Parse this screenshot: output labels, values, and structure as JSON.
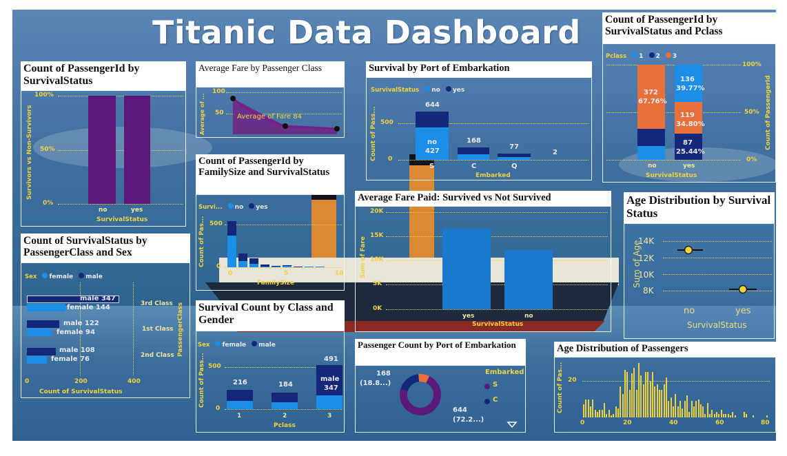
{
  "dashboard_title": "Titanic Data Dashboard",
  "colors": {
    "purple": "#5b1a7a",
    "dark_blue": "#14287a",
    "bright_blue": "#1b8fe8",
    "orange": "#e8703a",
    "axis_yellow": "#f0d23c"
  },
  "icons": {
    "more": "chevron-down-icon"
  },
  "p1": {
    "title": "Count of PassengerId by SurvivalStatus",
    "y_axis_label": "Survivors vs Non-Survivors",
    "x_axis_label": "SurvivalStatus",
    "yticks": [
      "100%",
      "50%",
      "0%"
    ],
    "cats": [
      "no",
      "yes"
    ]
  },
  "p2": {
    "title": "Average Fare by Passenger Class",
    "y_axis_label": "Average of ...",
    "yticks": [
      "100",
      "50"
    ],
    "annotation": "Average of Fare 84"
  },
  "p3": {
    "title": "Survival by Port of Embarkation",
    "legend_title": "SurvivalStatus",
    "legend": [
      "no",
      "yes"
    ],
    "y_axis_label": "Count of Pass...",
    "x_axis_label": "Embarked",
    "yticks": [
      "500",
      "0"
    ],
    "no_label": "no",
    "vals": [
      "644",
      "427",
      "168",
      "77",
      "2"
    ],
    "cats": [
      "S",
      "C",
      "Q"
    ]
  },
  "p4": {
    "title": "Count of PassengerId by SurvivalStatus and Pclass",
    "legend_title": "Pclass",
    "legend": [
      "1",
      "2",
      "3"
    ],
    "right_axis_label": "Count of PassengerId",
    "x_axis_label": "SurvivalStatus",
    "yticks": [
      "100%",
      "50%",
      "0%"
    ],
    "no_vals": [
      "372",
      "67.76%"
    ],
    "yes_vals": [
      "136",
      "39.77%",
      "119",
      "34.80%",
      "87",
      "25.44%"
    ],
    "cats": [
      "no",
      "yes"
    ]
  },
  "p5": {
    "title": "Count of PassengerId by FamilySize and SurvivalStatus",
    "legend_title": "Survi...",
    "legend": [
      "no",
      "yes"
    ],
    "y_axis_label": "Count of Pas...",
    "x_axis_label": "FamilySize",
    "yticks": [
      "500",
      "0"
    ],
    "xticks": [
      "0",
      "5",
      "10"
    ]
  },
  "p6": {
    "title": "Average Fare Paid: Survived vs Not Survived",
    "y_axis_label": "Sum of Fare",
    "x_axis_label": "SurvivalStatus",
    "yticks": [
      "20K",
      "15K",
      "10K",
      "5K",
      "0K"
    ],
    "cats": [
      "yes",
      "no"
    ]
  },
  "p7": {
    "title": "Age Distribution by Survival Status",
    "y_axis_label": "Sum of Age",
    "x_axis_label": "SurvivalStatus",
    "yticks": [
      "14K",
      "12K",
      "10K",
      "8K"
    ],
    "cats": [
      "no",
      "yes"
    ]
  },
  "p8": {
    "title": "Count of SurvivalStatus by PassengerClass and Sex",
    "legend_title": "Sex",
    "legend": [
      "female",
      "male"
    ],
    "right_axis_label": "PassengerClass",
    "x_axis_label": "Count of SurvivalStatus",
    "xticks": [
      "0",
      "200",
      "400"
    ],
    "rows": [
      {
        "class": "3rd Class",
        "male": "male 347",
        "female": "female 144"
      },
      {
        "class": "1st Class",
        "male": "male 122",
        "female": "female 94"
      },
      {
        "class": "2nd Class",
        "male": "male 108",
        "female": "female 76"
      }
    ]
  },
  "p9": {
    "title": "Survival Count by Class and Gender",
    "legend_title": "Sex",
    "legend": [
      "female",
      "male"
    ],
    "y_axis_label": "Count of Pass...",
    "x_axis_label": "Pclass",
    "yticks": [
      "500",
      "0"
    ],
    "totals": [
      "216",
      "184",
      "491"
    ],
    "male_label": "male",
    "male_val": "347",
    "cats": [
      "1",
      "2",
      "3"
    ]
  },
  "p10": {
    "title": "Passenger Count by Port of Embarkation",
    "legend_title": "Embarked",
    "legend": [
      "S",
      "C"
    ],
    "label_a": "168",
    "label_a_pct": "(18.8...)",
    "label_b": "644",
    "label_b_pct": "(72.2...)"
  },
  "p11": {
    "title": "Age Distribution of Passengers",
    "y_axis_label": "Count of Pas...",
    "yticks": [
      "20"
    ],
    "xticks": [
      "0",
      "20",
      "40",
      "60",
      "80"
    ]
  },
  "chart_data": [
    {
      "type": "bar",
      "title": "Count of PassengerId by SurvivalStatus",
      "categories": [
        "no",
        "yes"
      ],
      "values": [
        1.0,
        1.0
      ],
      "ylim": [
        0,
        1
      ]
    },
    {
      "type": "line",
      "title": "Average Fare by Passenger Class",
      "x": [
        1,
        2,
        3
      ],
      "values": [
        84,
        20,
        13
      ],
      "ylim": [
        0,
        100
      ]
    },
    {
      "type": "bar",
      "title": "Survival by Port of Embarkation",
      "categories": [
        "S",
        "C",
        "Q"
      ],
      "series": [
        {
          "name": "no",
          "values": [
            427,
            75,
            47
          ]
        },
        {
          "name": "yes",
          "values": [
            217,
            93,
            30
          ]
        }
      ],
      "totals": [
        644,
        168,
        77
      ],
      "extra_label": 2
    },
    {
      "type": "bar",
      "title": "Count of PassengerId by SurvivalStatus and Pclass",
      "categories": [
        "no",
        "yes"
      ],
      "series": [
        {
          "name": "1",
          "values": [
            80,
            136
          ]
        },
        {
          "name": "2",
          "values": [
            97,
            87
          ]
        },
        {
          "name": "3",
          "values": [
            372,
            119
          ]
        }
      ]
    },
    {
      "type": "bar",
      "title": "Count of PassengerId by FamilySize and SurvivalStatus",
      "categories": [
        "1",
        "2",
        "3",
        "4",
        "5",
        "6",
        "7",
        "8",
        "11"
      ],
      "series": [
        {
          "name": "no",
          "values": [
            374,
            72,
            43,
            8,
            12,
            19,
            8,
            6,
            7
          ]
        },
        {
          "name": "yes",
          "values": [
            163,
            89,
            59,
            21,
            3,
            3,
            4,
            0,
            0
          ]
        }
      ]
    },
    {
      "type": "bar",
      "title": "Average Fare Paid: Survived vs Not Survived",
      "categories": [
        "yes",
        "no"
      ],
      "values": [
        16550,
        12140
      ],
      "ylim": [
        0,
        20000
      ]
    },
    {
      "type": "scatter",
      "title": "Age Distribution by Survival Status",
      "categories": [
        "no",
        "yes"
      ],
      "values": [
        12985,
        8220
      ]
    },
    {
      "type": "bar",
      "title": "Count of SurvivalStatus by PassengerClass and Sex",
      "categories": [
        "3rd Class",
        "1st Class",
        "2nd Class"
      ],
      "series": [
        {
          "name": "male",
          "values": [
            347,
            122,
            108
          ]
        },
        {
          "name": "female",
          "values": [
            144,
            94,
            76
          ]
        }
      ]
    },
    {
      "type": "bar",
      "title": "Survival Count by Class and Gender",
      "categories": [
        "1",
        "2",
        "3"
      ],
      "series": [
        {
          "name": "female",
          "values": [
            94,
            76,
            144
          ]
        },
        {
          "name": "male",
          "values": [
            122,
            108,
            347
          ]
        }
      ],
      "totals": [
        216,
        184,
        491
      ]
    },
    {
      "type": "pie",
      "title": "Passenger Count by Port of Embarkation",
      "categories": [
        "S",
        "C",
        "Q"
      ],
      "values": [
        644,
        168,
        77
      ]
    },
    {
      "type": "bar",
      "title": "Age Distribution of Passengers",
      "x": [
        0,
        1,
        2,
        3,
        4,
        5,
        6,
        7,
        8,
        9,
        10,
        11,
        12,
        13,
        14,
        15,
        16,
        17,
        18,
        19,
        20,
        21,
        22,
        23,
        24,
        25,
        26,
        27,
        28,
        29,
        30,
        31,
        32,
        33,
        34,
        35,
        36,
        37,
        38,
        39,
        40,
        41,
        42,
        43,
        44,
        45,
        46,
        47,
        48,
        49,
        50,
        51,
        52,
        53,
        54,
        55,
        56,
        57,
        58,
        59,
        60,
        61,
        62,
        63,
        64,
        65,
        66,
        70,
        71,
        74,
        80
      ],
      "values": [
        7,
        10,
        10,
        6,
        10,
        4,
        3,
        4,
        4,
        8,
        2,
        4,
        1,
        2,
        6,
        5,
        17,
        13,
        26,
        25,
        15,
        24,
        27,
        15,
        30,
        23,
        18,
        25,
        25,
        20,
        25,
        17,
        18,
        15,
        15,
        18,
        22,
        9,
        11,
        6,
        13,
        6,
        9,
        5,
        9,
        12,
        3,
        9,
        6,
        9,
        10,
        7,
        6,
        2,
        8,
        2,
        4,
        2,
        3,
        2,
        4,
        2,
        2,
        2,
        1,
        3,
        1,
        3,
        2,
        1,
        1
      ]
    }
  ]
}
